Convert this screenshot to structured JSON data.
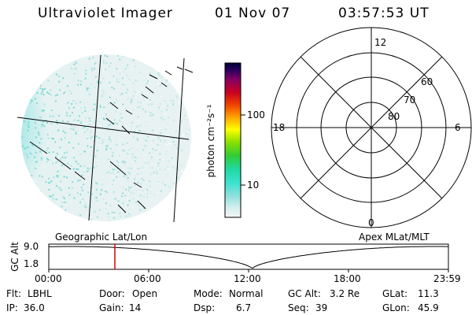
{
  "header": {
    "instrument": "Ultraviolet Imager",
    "date": "01 Nov 07",
    "time": "03:57:53 UT"
  },
  "colorbar": {
    "unit_label": "photon cm⁻²s⁻¹",
    "ticks": [
      "100",
      "10"
    ]
  },
  "polar_plot": {
    "mlt_labels": [
      "12",
      "18",
      "6",
      "0"
    ],
    "lat_labels": [
      "60",
      "70",
      "80"
    ]
  },
  "geo_label": "Geographic Lat/Lon",
  "apex_label": "Apex MLat/MLT",
  "altitude_plot": {
    "ylabel": "GC Alt",
    "yticks": [
      "9.0",
      "1.8"
    ],
    "xticks": [
      "00:00",
      "06:00",
      "12:00",
      "18:00",
      "23:59"
    ],
    "marker_color": "#dd0000"
  },
  "info": {
    "row1": [
      {
        "label": "Flt:",
        "value": "LBHL"
      },
      {
        "label": "Door:",
        "value": "Open"
      },
      {
        "label": "Mode:",
        "value": "Normal"
      },
      {
        "label": "GC Alt:",
        "value": "3.2 Re"
      },
      {
        "label": "GLat:",
        "value": "11.3"
      }
    ],
    "row2": [
      {
        "label": "IP:",
        "value": "36.0"
      },
      {
        "label": "Gain:",
        "value": "14"
      },
      {
        "label": "Dsp:",
        "value": "6.7"
      },
      {
        "label": "Seq:",
        "value": "39"
      },
      {
        "label": "GLon:",
        "value": "45.9"
      }
    ]
  }
}
